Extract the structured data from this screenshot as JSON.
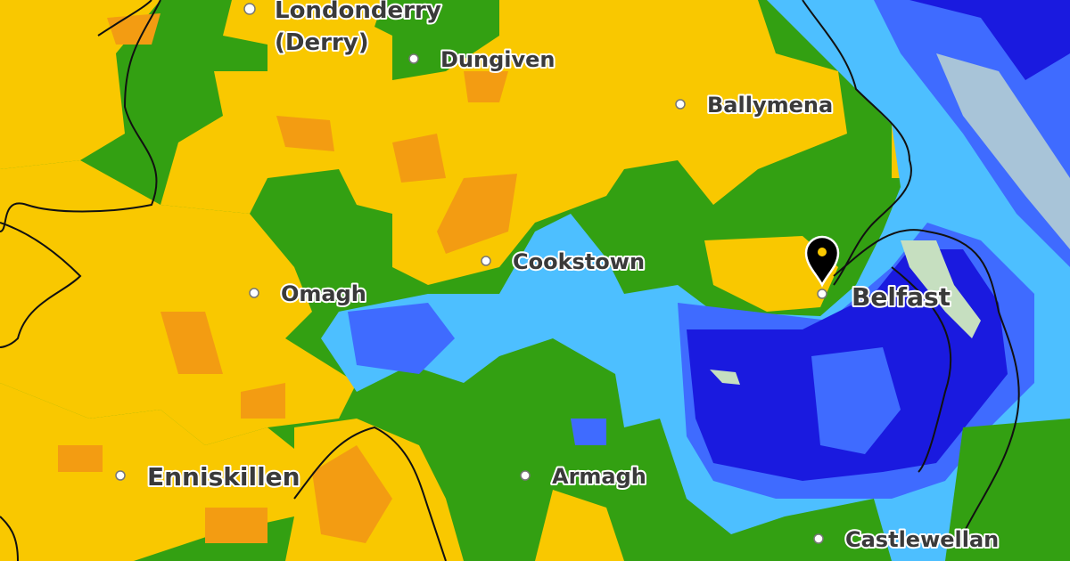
{
  "map": {
    "type": "rainfall-radar",
    "colors": {
      "none": "#33a012",
      "light": "#f9c800",
      "moderate": "#f39c12",
      "sea_light": "#4dbfff",
      "medium": "#3f6bff",
      "heavy": "#1a1adf",
      "pale": "#c6dfc0",
      "grey": "#a8c4d8"
    },
    "places": [
      {
        "name": "Londonderry",
        "line2": "(Derry)"
      },
      {
        "name": "Dungiven"
      },
      {
        "name": "Ballymena"
      },
      {
        "name": "Cookstown"
      },
      {
        "name": "Omagh"
      },
      {
        "name": "Belfast"
      },
      {
        "name": "Enniskillen"
      },
      {
        "name": "Armagh"
      },
      {
        "name": "Castlewellan"
      }
    ],
    "marker": {
      "icon": "map-pin-icon",
      "place": "Belfast"
    }
  }
}
